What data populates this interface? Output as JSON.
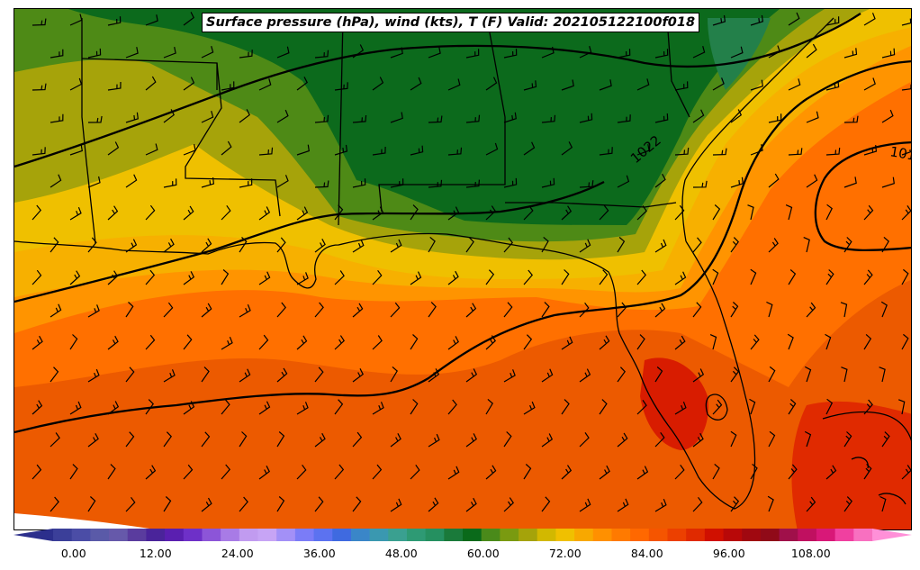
{
  "title": "Surface pressure (hPa), wind (kts), T (F) Valid: 202105122100f018",
  "isobar_labels": [
    "1022",
    "101"
  ],
  "colorbar": {
    "min": -6,
    "max": 120,
    "step": 3,
    "tick_labels": [
      "0.00",
      "12.00",
      "24.00",
      "36.00",
      "48.00",
      "60.00",
      "72.00",
      "84.00",
      "96.00",
      "108.00"
    ],
    "tick_values": [
      0,
      12,
      24,
      36,
      48,
      60,
      72,
      84,
      96,
      108
    ],
    "colors": [
      "#2c2f8c",
      "#3b3f99",
      "#4b4da6",
      "#5a5aa8",
      "#6659aa",
      "#5a3c9e",
      "#4a249a",
      "#5a1fb0",
      "#6e30c8",
      "#8c55d8",
      "#a87be6",
      "#c19bf0",
      "#c7a4f5",
      "#a390f7",
      "#7b7cf7",
      "#5c72f0",
      "#3f6ae0",
      "#3a86c8",
      "#3a98b0",
      "#3aa090",
      "#2e9a74",
      "#259060",
      "#1a7a3a",
      "#0a6a1a",
      "#4a8a1a",
      "#7a9a10",
      "#a5a30a",
      "#d2b800",
      "#f0c000",
      "#f8a800",
      "#ff9000",
      "#ff7a00",
      "#ff6800",
      "#f55500",
      "#ec4000",
      "#e02a00",
      "#d01000",
      "#b80808",
      "#a00810",
      "#900a18",
      "#a0104a",
      "#c01060",
      "#d81878",
      "#f040a0",
      "#f870c0",
      "#ff90d8"
    ]
  },
  "colors": {
    "dark_green": "#0a6a1a",
    "mid_green": "#1a7a3a",
    "olive_green": "#4a8a1a",
    "olive": "#a5a30a",
    "yellow": "#f0c000",
    "orange_light": "#ffa000",
    "orange": "#ff7a00",
    "orange_dark": "#f05500",
    "red_orange": "#e03a00",
    "red": "#d01800"
  }
}
